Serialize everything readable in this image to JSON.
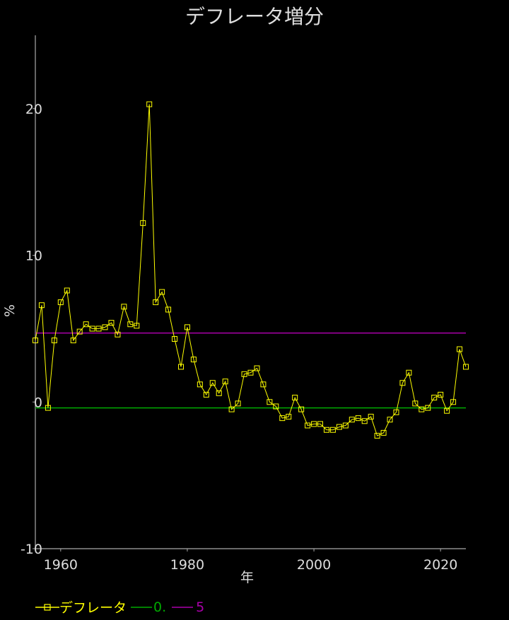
{
  "chart_data": {
    "type": "line",
    "title": "デフレータ増分",
    "xlabel": "年",
    "ylabel": "%",
    "xlim": [
      1956,
      2024
    ],
    "ylim": [
      -10,
      25
    ],
    "x_ticks": [
      "1960",
      "1980",
      "2000",
      "2020"
    ],
    "y_ticks": [
      "-10",
      "0",
      "10",
      "20"
    ],
    "grid": false,
    "legend_position": "bottom-left",
    "series": [
      {
        "name": "デフレータ",
        "color": "#ffff00",
        "marker": "square",
        "x": [
          1956,
          1957,
          1958,
          1959,
          1960,
          1961,
          1962,
          1963,
          1964,
          1965,
          1966,
          1967,
          1968,
          1969,
          1970,
          1971,
          1972,
          1973,
          1974,
          1975,
          1976,
          1977,
          1978,
          1979,
          1980,
          1981,
          1982,
          1983,
          1984,
          1985,
          1986,
          1987,
          1988,
          1989,
          1990,
          1991,
          1992,
          1993,
          1994,
          1995,
          1996,
          1997,
          1998,
          1999,
          2000,
          2001,
          2002,
          2003,
          2004,
          2005,
          2006,
          2007,
          2008,
          2009,
          2010,
          2011,
          2012,
          2013,
          2014,
          2015,
          2016,
          2017,
          2018,
          2019,
          2020,
          2021,
          2022,
          2023,
          2024
        ],
        "y": [
          4.2,
          6.6,
          -0.4,
          4.2,
          6.8,
          7.6,
          4.2,
          4.8,
          5.3,
          5.0,
          5.0,
          5.1,
          5.4,
          4.6,
          6.5,
          5.3,
          5.2,
          12.2,
          20.3,
          6.8,
          7.5,
          6.3,
          4.3,
          2.4,
          5.1,
          2.9,
          1.2,
          0.5,
          1.3,
          0.6,
          1.4,
          -0.5,
          -0.1,
          1.9,
          2.0,
          2.3,
          1.2,
          0.0,
          -0.3,
          -1.1,
          -1.0,
          0.3,
          -0.5,
          -1.6,
          -1.5,
          -1.5,
          -1.9,
          -1.9,
          -1.7,
          -1.6,
          -1.2,
          -1.1,
          -1.3,
          -1.0,
          -2.3,
          -2.1,
          -1.2,
          -0.7,
          1.3,
          2.0,
          -0.1,
          -0.5,
          -0.4,
          0.3,
          0.5,
          -0.6,
          0.0,
          3.6,
          2.4
        ]
      },
      {
        "name": "0.",
        "color": "#00aa00",
        "type": "hline",
        "value": -0.4
      },
      {
        "name": "5",
        "color": "#aa00aa",
        "type": "hline",
        "value": 4.7
      }
    ]
  }
}
